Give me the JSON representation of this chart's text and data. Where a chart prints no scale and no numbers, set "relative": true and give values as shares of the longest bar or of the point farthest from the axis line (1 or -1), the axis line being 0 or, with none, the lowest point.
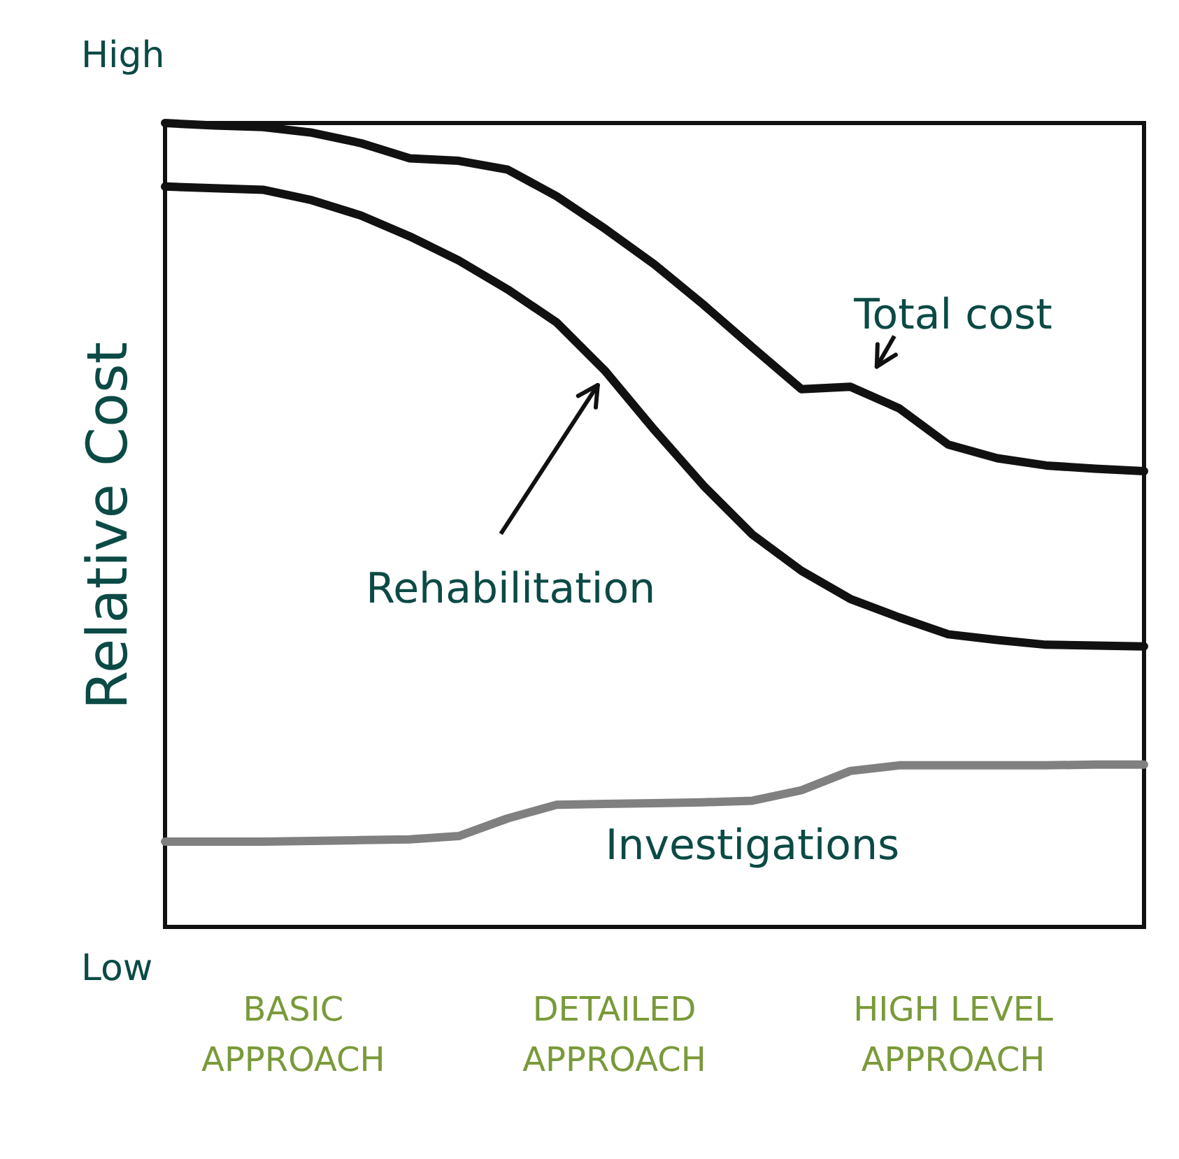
{
  "chart_data": {
    "type": "line",
    "relative": true,
    "ylabel": "Relative Cost",
    "categories": [
      null,
      null,
      null,
      null,
      null,
      null,
      null,
      null,
      null,
      null,
      null,
      null,
      null,
      null,
      null,
      null,
      null,
      null,
      null,
      null,
      null
    ],
    "grid": false,
    "legend": false,
    "marker": "none",
    "line_style": "solid",
    "annotations": [
      "High",
      "Low",
      "BASIC APPROACH",
      "DETAILED APPROACH",
      "HIGH LEVEL APPROACH"
    ],
    "series": [
      {
        "name": "Total cost",
        "color": "#111111",
        "values": [
          1.0,
          0.997,
          0.995,
          0.988,
          0.975,
          0.956,
          0.953,
          0.942,
          0.909,
          0.868,
          0.824,
          0.774,
          0.721,
          0.669,
          0.672,
          0.645,
          0.6,
          0.583,
          0.574,
          0.57,
          0.567
        ]
      },
      {
        "name": "Rehabilitation",
        "color": "#111111",
        "values": [
          0.921,
          0.919,
          0.917,
          0.904,
          0.885,
          0.859,
          0.829,
          0.793,
          0.752,
          0.691,
          0.618,
          0.549,
          0.488,
          0.443,
          0.408,
          0.385,
          0.364,
          0.357,
          0.351,
          0.35,
          0.349
        ]
      },
      {
        "name": "Investigations",
        "color": "#808080",
        "values": [
          0.106,
          0.106,
          0.106,
          0.107,
          0.108,
          0.109,
          0.113,
          0.135,
          0.152,
          0.153,
          0.154,
          0.155,
          0.157,
          0.17,
          0.194,
          0.201,
          0.201,
          0.201,
          0.201,
          0.202,
          0.202
        ]
      }
    ]
  }
}
